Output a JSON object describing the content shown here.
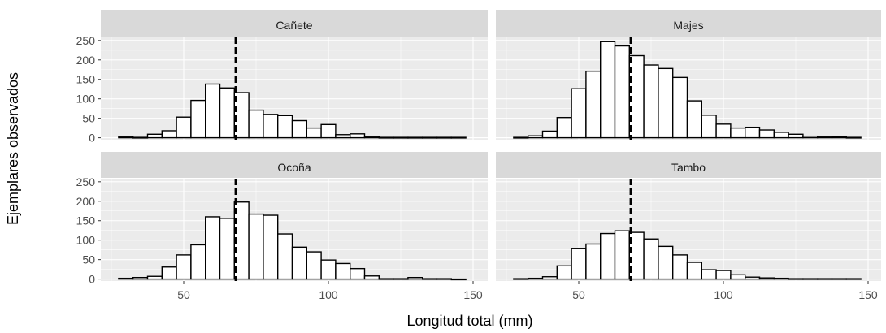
{
  "chart_data": {
    "type": "bar",
    "xlabel": "Longitud total (mm)",
    "ylabel": "Ejemplares observados",
    "xlim": [
      22,
      150
    ],
    "ylim": [
      -5,
      258
    ],
    "x_ticks": [
      50,
      100,
      150
    ],
    "y_ticks": [
      0,
      50,
      100,
      150,
      200,
      250
    ],
    "bin_width": 5,
    "bin_centers": [
      30,
      35,
      40,
      45,
      50,
      55,
      60,
      65,
      70,
      75,
      80,
      85,
      90,
      95,
      100,
      105,
      110,
      115,
      120,
      125,
      130,
      135,
      140,
      145
    ],
    "reference_line_x": 68,
    "grid": true,
    "panels": [
      {
        "name": "Cañete",
        "values": [
          3,
          1,
          9,
          18,
          53,
          96,
          138,
          128,
          116,
          71,
          60,
          57,
          44,
          25,
          34,
          8,
          10,
          3,
          1,
          1,
          1,
          1,
          1,
          1
        ]
      },
      {
        "name": "Majes",
        "values": [
          1,
          5,
          17,
          52,
          126,
          171,
          247,
          236,
          211,
          187,
          178,
          155,
          95,
          58,
          35,
          25,
          27,
          20,
          14,
          9,
          4,
          3,
          2,
          1
        ]
      },
      {
        "name": "Ocoña",
        "values": [
          2,
          4,
          7,
          31,
          62,
          88,
          160,
          156,
          198,
          167,
          164,
          116,
          82,
          70,
          49,
          40,
          27,
          8,
          1,
          1,
          4,
          1,
          1,
          0
        ]
      },
      {
        "name": "Tambo",
        "values": [
          1,
          2,
          6,
          34,
          79,
          90,
          117,
          124,
          120,
          103,
          84,
          62,
          43,
          24,
          22,
          11,
          5,
          3,
          2,
          1,
          1,
          1,
          1,
          1
        ]
      }
    ]
  }
}
